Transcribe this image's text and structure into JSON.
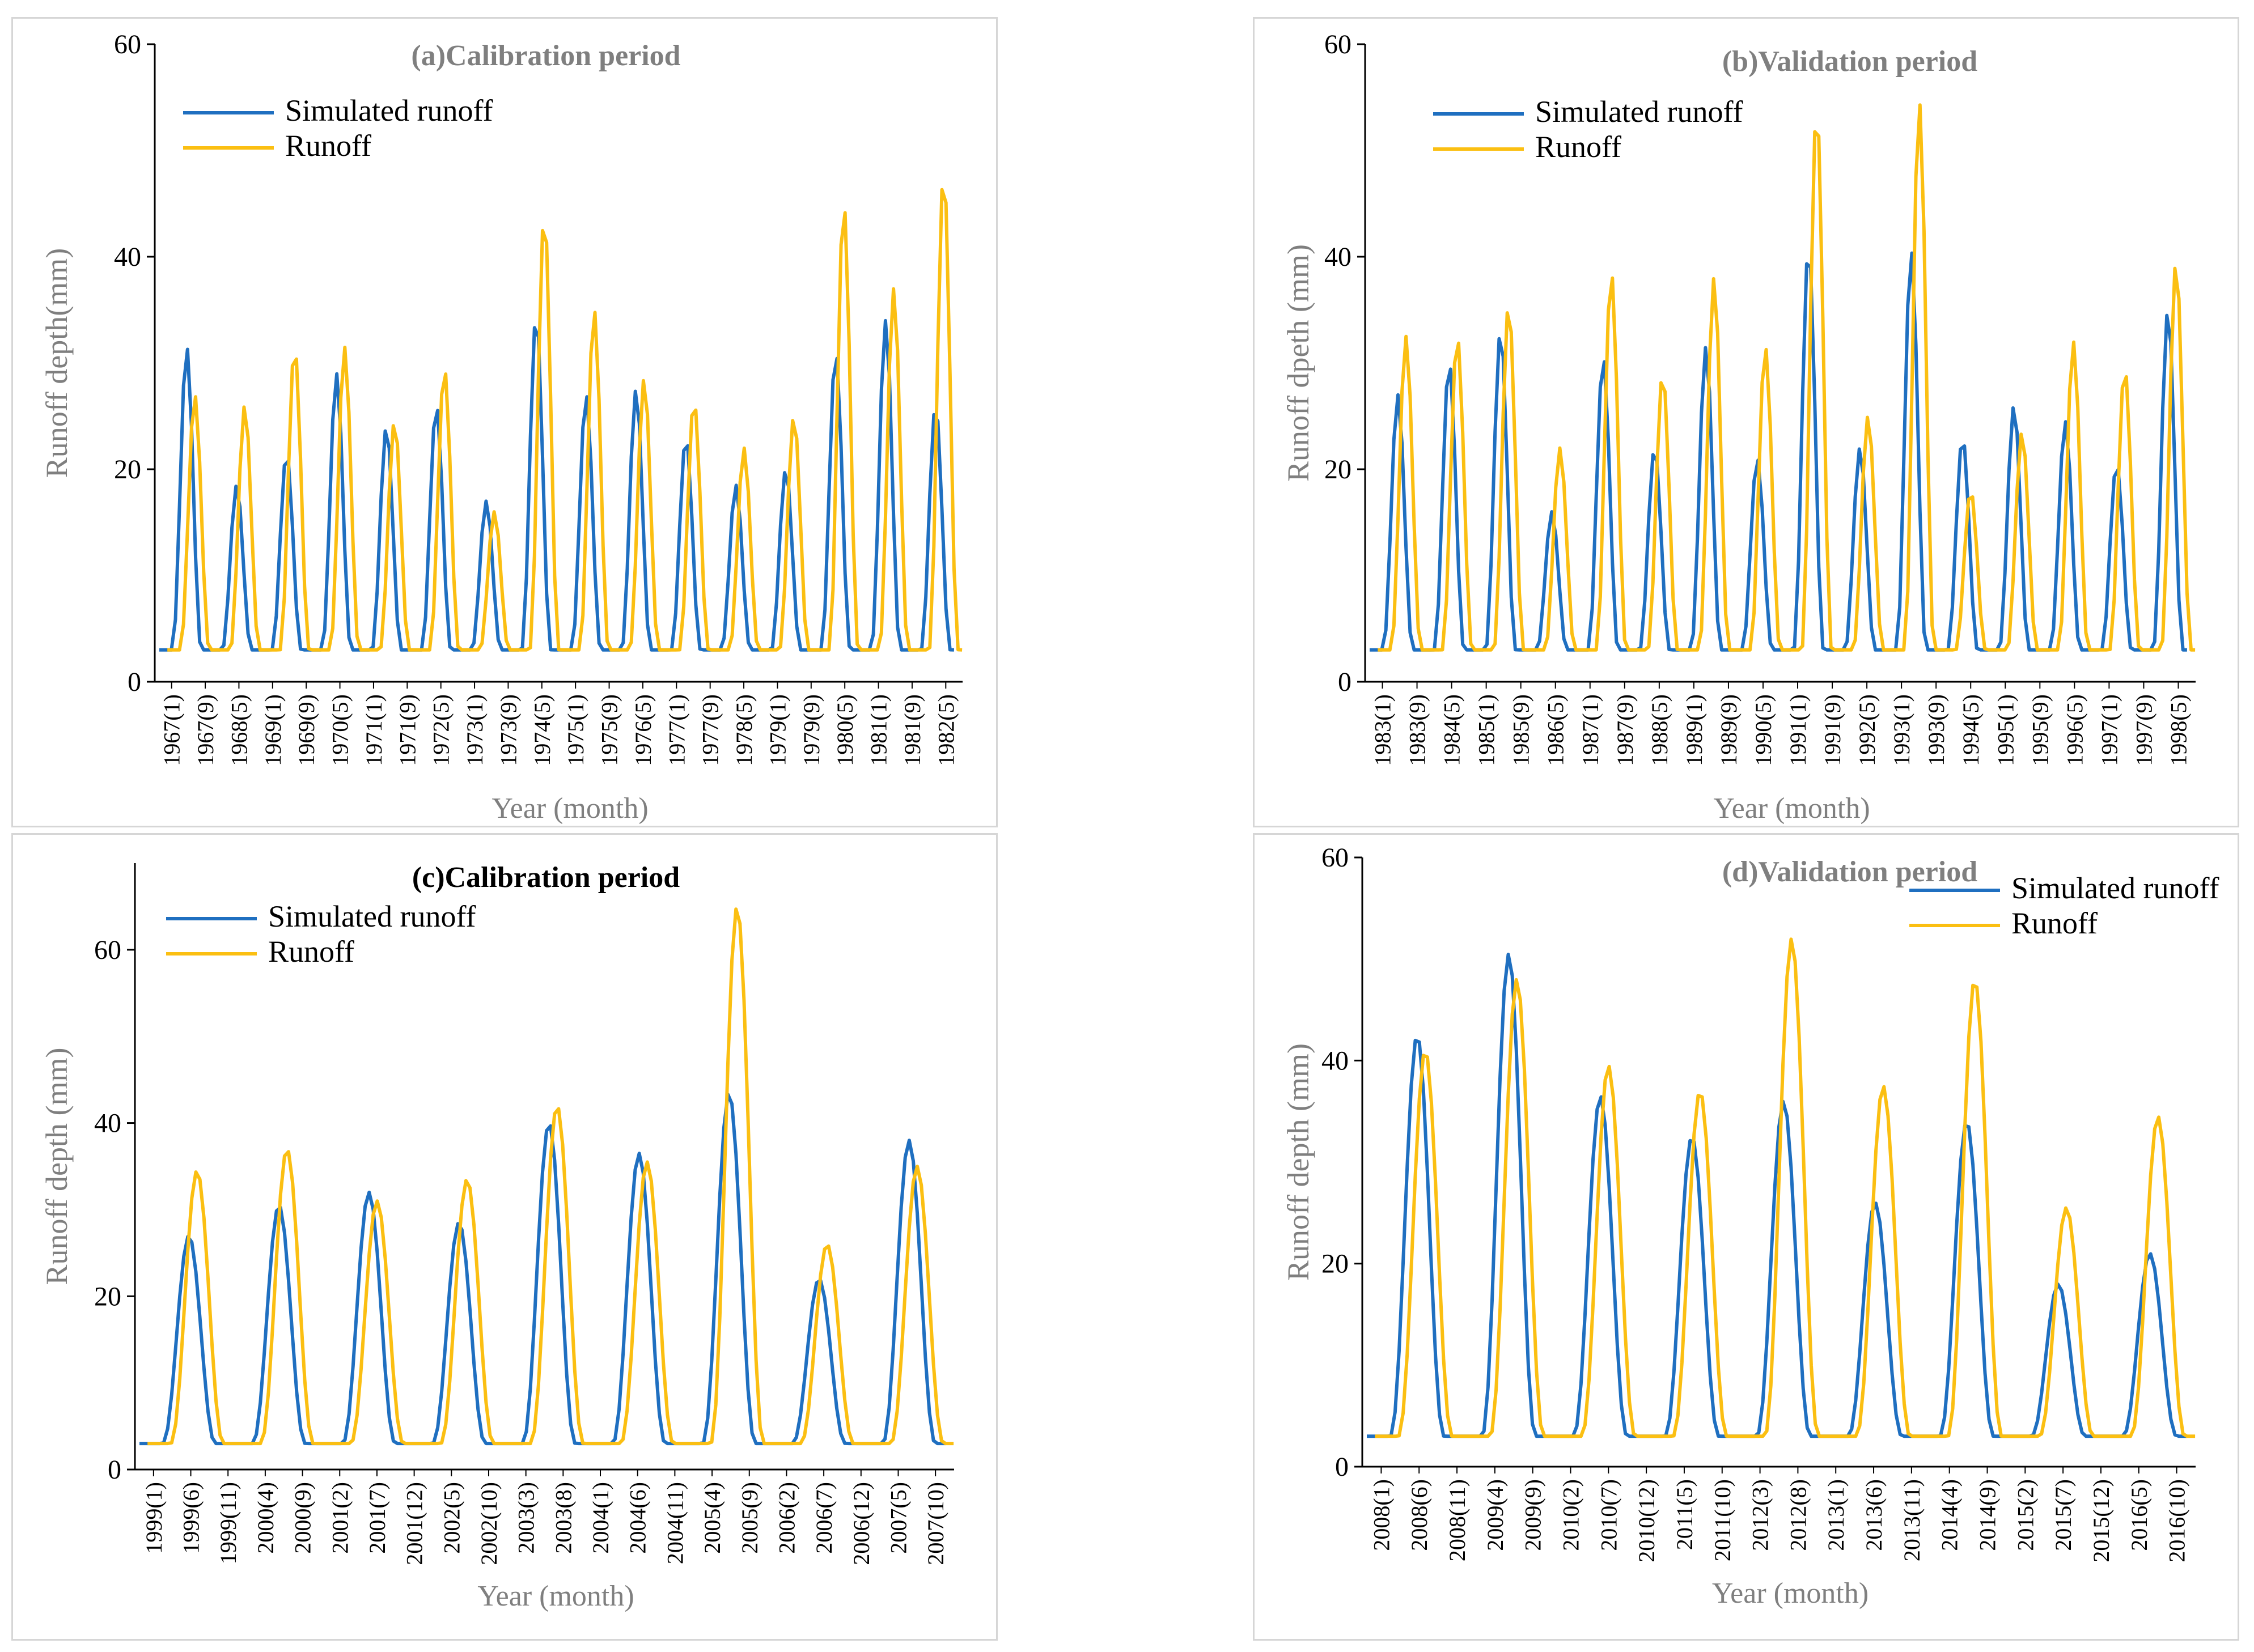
{
  "colors": {
    "simulated": "#1f6fc0",
    "observed": "#fbbf12",
    "axis": "#000000",
    "label": "#7f7f7f"
  },
  "chart_data": [
    {
      "id": "a",
      "type": "line",
      "title": "(a)Calibration period",
      "title_color": "#7f7f7f",
      "xlabel": "Year (month)",
      "ylabel": "Runoff depth(mm)",
      "ylim": [
        0,
        60
      ],
      "yticks": [
        0,
        20,
        40,
        60
      ],
      "legend_position": "top-left",
      "grid": false,
      "x_tick_labels": [
        "1967(1)",
        "1967(9)",
        "1968(5)",
        "1969(1)",
        "1969(9)",
        "1970(5)",
        "1971(1)",
        "1971(9)",
        "1972(5)",
        "1973(1)",
        "1973(9)",
        "1974(5)",
        "1975(1)",
        "1975(9)",
        "1976(5)",
        "1977(1)",
        "1977(9)",
        "1978(5)",
        "1979(1)",
        "1979(9)",
        "1980(5)",
        "1981(1)",
        "1981(9)",
        "1982(5)"
      ],
      "series": [
        {
          "name": "Simulated runoff",
          "color": "#1f6fc0",
          "peaks": [
            31.5,
            18.5,
            21.5,
            29,
            24,
            26,
            17,
            34.5,
            27,
            27.5,
            23,
            18.5,
            20,
            31,
            34,
            26
          ],
          "base": 3
        },
        {
          "name": "Runoff",
          "color": "#fbbf12",
          "peaks": [
            27,
            26,
            31.5,
            31.5,
            24.5,
            29.5,
            16,
            44,
            35,
            28.5,
            26.5,
            22,
            25,
            45,
            37,
            48
          ],
          "base": 3
        }
      ]
    },
    {
      "id": "b",
      "type": "line",
      "title": "(b)Validation period",
      "title_color": "#7f7f7f",
      "xlabel": "Year (month)",
      "ylabel": "Runoff dpeth (mm)",
      "ylim": [
        0,
        60
      ],
      "yticks": [
        0,
        20,
        40,
        60
      ],
      "legend_position": "top-left",
      "grid": false,
      "x_tick_labels": [
        "1983(1)",
        "1983(9)",
        "1984(5)",
        "1985(1)",
        "1985(9)",
        "1986(5)",
        "1987(1)",
        "1987(9)",
        "1988(5)",
        "1989(1)",
        "1989(9)",
        "1990(5)",
        "1991(1)",
        "1991(9)",
        "1992(5)",
        "1993(1)",
        "1993(9)",
        "1994(5)",
        "1995(1)",
        "1995(9)",
        "1996(5)",
        "1997(1)",
        "1997(9)",
        "1998(5)"
      ],
      "series": [
        {
          "name": "Simulated runoff",
          "color": "#1f6fc0",
          "peaks": [
            27,
            30,
            33,
            16,
            30.5,
            22,
            31.5,
            21,
            41,
            22,
            40.5,
            23,
            26,
            24.5,
            20.5,
            35
          ],
          "base": 3
        },
        {
          "name": "Runoff",
          "color": "#fbbf12",
          "peaks": [
            32.5,
            32.5,
            35.5,
            22,
            38.5,
            29,
            38,
            31.5,
            54,
            25,
            54.5,
            18,
            23.5,
            32,
            29.5,
            39.5
          ],
          "base": 3
        }
      ]
    },
    {
      "id": "c",
      "type": "line",
      "title": "(c)Calibration period",
      "title_color": "#000000",
      "xlabel": "Year (month)",
      "ylabel": "Runoff depth (mm)",
      "ylim": [
        0,
        70
      ],
      "yticks": [
        0,
        20,
        40,
        60
      ],
      "legend_position": "top-left",
      "grid": false,
      "x_tick_labels": [
        "1999(1)",
        "1999(6)",
        "1999(11)",
        "2000(4)",
        "2000(9)",
        "2001(2)",
        "2001(7)",
        "2001(12)",
        "2002(5)",
        "2002(10)",
        "2003(3)",
        "2003(8)",
        "2004(1)",
        "2004(6)",
        "2004(11)",
        "2005(4)",
        "2005(9)",
        "2006(2)",
        "2006(7)",
        "2006(12)",
        "2007(5)",
        "2007(10)"
      ],
      "series": [
        {
          "name": "Simulated runoff",
          "color": "#1f6fc0",
          "peaks": [
            27,
            30.5,
            32,
            28.5,
            40,
            36.5,
            43.5,
            22,
            38
          ],
          "base": 3
        },
        {
          "name": "Runoff",
          "color": "#fbbf12",
          "peaks": [
            34.5,
            37,
            31,
            33.5,
            42,
            35.5,
            65,
            26,
            35
          ],
          "base": 3
        }
      ]
    },
    {
      "id": "d",
      "type": "line",
      "title": "(d)Validation period",
      "title_color": "#7f7f7f",
      "xlabel": "Year (month)",
      "ylabel": "Runoff depth (mm)",
      "ylim": [
        0,
        60
      ],
      "yticks": [
        0,
        20,
        40,
        60
      ],
      "legend_position": "top-right",
      "grid": false,
      "x_tick_labels": [
        "2008(1)",
        "2008(6)",
        "2008(11)",
        "2009(4)",
        "2009(9)",
        "2010(2)",
        "2010(7)",
        "2010(12)",
        "2011(5)",
        "2011(10)",
        "2012(3)",
        "2012(8)",
        "2013(1)",
        "2013(6)",
        "2013(11)",
        "2014(4)",
        "2014(9)",
        "2015(2)",
        "2015(7)",
        "2015(12)",
        "2016(5)",
        "2016(10)"
      ],
      "series": [
        {
          "name": "Simulated runoff",
          "color": "#1f6fc0",
          "peaks": [
            42.5,
            50.5,
            36.5,
            32.5,
            36,
            26,
            34,
            18,
            21
          ],
          "base": 3
        },
        {
          "name": "Runoff",
          "color": "#fbbf12",
          "peaks": [
            41,
            48,
            39.5,
            37,
            52,
            37.5,
            48,
            25.5,
            34.5
          ],
          "base": 3
        }
      ]
    }
  ]
}
